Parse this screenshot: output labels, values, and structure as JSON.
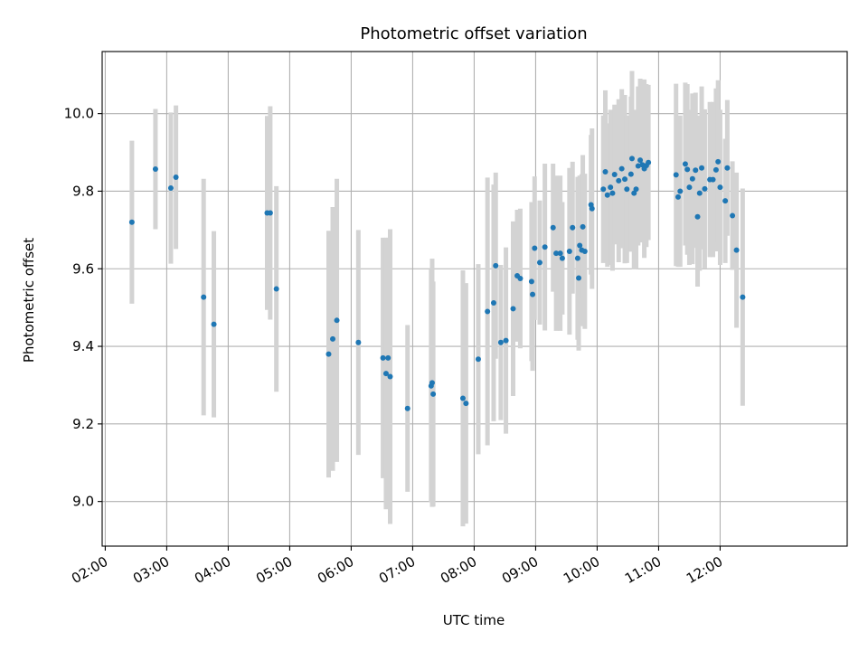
{
  "chart_data": {
    "type": "scatter",
    "title": "Photometric offset variation",
    "xlabel": "UTC time",
    "ylabel": "Photometric offset",
    "xlim_minutes": [
      117,
      844
    ],
    "ylim": [
      8.885,
      10.16
    ],
    "grid": true,
    "x_ticks": [
      {
        "minutes": 120,
        "label": "02:00"
      },
      {
        "minutes": 180,
        "label": "03:00"
      },
      {
        "minutes": 240,
        "label": "04:00"
      },
      {
        "minutes": 300,
        "label": "05:00"
      },
      {
        "minutes": 360,
        "label": "06:00"
      },
      {
        "minutes": 420,
        "label": "07:00"
      },
      {
        "minutes": 480,
        "label": "08:00"
      },
      {
        "minutes": 540,
        "label": "09:00"
      },
      {
        "minutes": 600,
        "label": "10:00"
      },
      {
        "minutes": 660,
        "label": "11:00"
      },
      {
        "minutes": 720,
        "label": "12:00"
      }
    ],
    "y_ticks": [
      {
        "value": 9.0,
        "label": "9.0"
      },
      {
        "value": 9.2,
        "label": "9.2"
      },
      {
        "value": 9.4,
        "label": "9.4"
      },
      {
        "value": 9.6,
        "label": "9.6"
      },
      {
        "value": 9.8,
        "label": "9.8"
      },
      {
        "value": 10.0,
        "label": "10.0"
      }
    ],
    "point_color": "#1f77b4",
    "errorbar_color": "#d3d3d3",
    "points": [
      {
        "t": "02:26",
        "y": 9.72,
        "err": 0.21
      },
      {
        "t": "02:49",
        "y": 9.857,
        "err": 0.155
      },
      {
        "t": "03:04",
        "y": 9.808,
        "err": 0.195
      },
      {
        "t": "03:09",
        "y": 9.836,
        "err": 0.185
      },
      {
        "t": "03:36",
        "y": 9.527,
        "err": 0.305
      },
      {
        "t": "03:46",
        "y": 9.457,
        "err": 0.24
      },
      {
        "t": "04:38",
        "y": 9.744,
        "err": 0.25
      },
      {
        "t": "04:41",
        "y": 9.744,
        "err": 0.275
      },
      {
        "t": "04:47",
        "y": 9.548,
        "err": 0.265
      },
      {
        "t": "05:38",
        "y": 9.38,
        "err": 0.318
      },
      {
        "t": "05:42",
        "y": 9.419,
        "err": 0.34
      },
      {
        "t": "05:46",
        "y": 9.467,
        "err": 0.365
      },
      {
        "t": "06:07",
        "y": 9.41,
        "err": 0.29
      },
      {
        "t": "06:31",
        "y": 9.37,
        "err": 0.31
      },
      {
        "t": "06:34",
        "y": 9.33,
        "err": 0.35
      },
      {
        "t": "06:36",
        "y": 9.37,
        "err": 0.31
      },
      {
        "t": "06:38",
        "y": 9.322,
        "err": 0.38
      },
      {
        "t": "06:55",
        "y": 9.24,
        "err": 0.215
      },
      {
        "t": "07:18",
        "y": 9.298,
        "err": 0.3
      },
      {
        "t": "07:19",
        "y": 9.306,
        "err": 0.32
      },
      {
        "t": "07:20",
        "y": 9.277,
        "err": 0.29
      },
      {
        "t": "07:49",
        "y": 9.266,
        "err": 0.33
      },
      {
        "t": "07:52",
        "y": 9.253,
        "err": 0.31
      },
      {
        "t": "08:04",
        "y": 9.367,
        "err": 0.245
      },
      {
        "t": "08:13",
        "y": 9.49,
        "err": 0.345
      },
      {
        "t": "08:19",
        "y": 9.512,
        "err": 0.305
      },
      {
        "t": "08:21",
        "y": 9.608,
        "err": 0.24
      },
      {
        "t": "08:26",
        "y": 9.41,
        "err": 0.2
      },
      {
        "t": "08:31",
        "y": 9.415,
        "err": 0.24
      },
      {
        "t": "08:38",
        "y": 9.497,
        "err": 0.225
      },
      {
        "t": "08:42",
        "y": 9.582,
        "err": 0.17
      },
      {
        "t": "08:45",
        "y": 9.575,
        "err": 0.18
      },
      {
        "t": "08:56",
        "y": 9.567,
        "err": 0.205
      },
      {
        "t": "08:57",
        "y": 9.534,
        "err": 0.197
      },
      {
        "t": "08:59",
        "y": 9.653,
        "err": 0.185
      },
      {
        "t": "09:04",
        "y": 9.616,
        "err": 0.16
      },
      {
        "t": "09:09",
        "y": 9.656,
        "err": 0.215
      },
      {
        "t": "09:17",
        "y": 9.706,
        "err": 0.165
      },
      {
        "t": "09:20",
        "y": 9.64,
        "err": 0.2
      },
      {
        "t": "09:24",
        "y": 9.64,
        "err": 0.2
      },
      {
        "t": "09:26",
        "y": 9.627,
        "err": 0.145
      },
      {
        "t": "09:33",
        "y": 9.645,
        "err": 0.215
      },
      {
        "t": "09:36",
        "y": 9.706,
        "err": 0.17
      },
      {
        "t": "09:41",
        "y": 9.627,
        "err": 0.21
      },
      {
        "t": "09:42",
        "y": 9.576,
        "err": 0.187
      },
      {
        "t": "09:43",
        "y": 9.66,
        "err": 0.18
      },
      {
        "t": "09:45",
        "y": 9.648,
        "err": 0.196
      },
      {
        "t": "09:46",
        "y": 9.708,
        "err": 0.185
      },
      {
        "t": "09:48",
        "y": 9.645,
        "err": 0.2
      },
      {
        "t": "09:54",
        "y": 9.765,
        "err": 0.18
      },
      {
        "t": "09:55",
        "y": 9.755,
        "err": 0.207
      },
      {
        "t": "10:06",
        "y": 9.805,
        "err": 0.19
      },
      {
        "t": "10:08",
        "y": 9.85,
        "err": 0.21
      },
      {
        "t": "10:10",
        "y": 9.79,
        "err": 0.185
      },
      {
        "t": "10:13",
        "y": 9.81,
        "err": 0.2
      },
      {
        "t": "10:15",
        "y": 9.795,
        "err": 0.2
      },
      {
        "t": "10:17",
        "y": 9.843,
        "err": 0.18
      },
      {
        "t": "10:21",
        "y": 9.827,
        "err": 0.21
      },
      {
        "t": "10:24",
        "y": 9.858,
        "err": 0.205
      },
      {
        "t": "10:27",
        "y": 9.831,
        "err": 0.217
      },
      {
        "t": "10:29",
        "y": 9.805,
        "err": 0.19
      },
      {
        "t": "10:33",
        "y": 9.844,
        "err": 0.2
      },
      {
        "t": "10:34",
        "y": 9.884,
        "err": 0.226
      },
      {
        "t": "10:36",
        "y": 9.795,
        "err": 0.196
      },
      {
        "t": "10:38",
        "y": 9.805,
        "err": 0.205
      },
      {
        "t": "10:40",
        "y": 9.865,
        "err": 0.205
      },
      {
        "t": "10:42",
        "y": 9.88,
        "err": 0.21
      },
      {
        "t": "10:44",
        "y": 9.868,
        "err": 0.2
      },
      {
        "t": "10:46",
        "y": 9.858,
        "err": 0.23
      },
      {
        "t": "10:48",
        "y": 9.866,
        "err": 0.21
      },
      {
        "t": "10:50",
        "y": 9.874,
        "err": 0.2
      },
      {
        "t": "11:17",
        "y": 9.842,
        "err": 0.235
      },
      {
        "t": "11:19",
        "y": 9.785,
        "err": 0.18
      },
      {
        "t": "11:21",
        "y": 9.8,
        "err": 0.195
      },
      {
        "t": "11:26",
        "y": 9.87,
        "err": 0.21
      },
      {
        "t": "11:28",
        "y": 9.856,
        "err": 0.22
      },
      {
        "t": "11:30",
        "y": 9.81,
        "err": 0.2
      },
      {
        "t": "11:33",
        "y": 9.832,
        "err": 0.22
      },
      {
        "t": "11:36",
        "y": 9.854,
        "err": 0.2
      },
      {
        "t": "11:38",
        "y": 9.734,
        "err": 0.18
      },
      {
        "t": "11:40",
        "y": 9.795,
        "err": 0.2
      },
      {
        "t": "11:42",
        "y": 9.86,
        "err": 0.21
      },
      {
        "t": "11:45",
        "y": 9.806,
        "err": 0.205
      },
      {
        "t": "11:50",
        "y": 9.83,
        "err": 0.2
      },
      {
        "t": "11:53",
        "y": 9.83,
        "err": 0.2
      },
      {
        "t": "11:56",
        "y": 9.855,
        "err": 0.21
      },
      {
        "t": "11:58",
        "y": 9.876,
        "err": 0.21
      },
      {
        "t": "12:00",
        "y": 9.81,
        "err": 0.2
      },
      {
        "t": "12:05",
        "y": 9.775,
        "err": 0.16
      },
      {
        "t": "12:07",
        "y": 9.86,
        "err": 0.175
      },
      {
        "t": "12:12",
        "y": 9.737,
        "err": 0.14
      },
      {
        "t": "12:16",
        "y": 9.648,
        "err": 0.2
      },
      {
        "t": "12:22",
        "y": 9.527,
        "err": 0.28
      }
    ]
  }
}
